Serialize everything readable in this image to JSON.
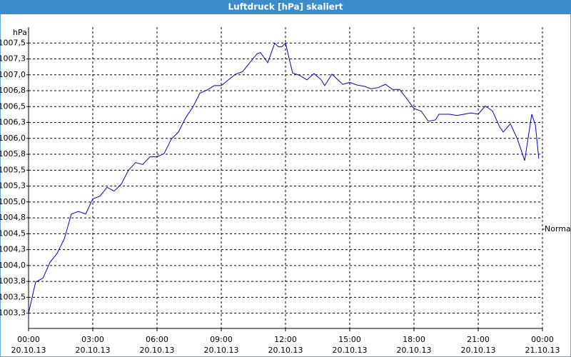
{
  "chart_data": {
    "type": "line",
    "title": "Luftdruck [hPa] skaliert",
    "y_label": "hPa",
    "x": [
      0,
      0.33,
      0.67,
      1,
      1.33,
      1.67,
      2,
      2.33,
      2.67,
      3,
      3.33,
      3.67,
      4,
      4.33,
      4.67,
      5,
      5.33,
      5.67,
      6,
      6.33,
      6.67,
      7,
      7.33,
      7.67,
      8,
      8.33,
      8.67,
      9,
      9.33,
      9.67,
      10,
      10.33,
      10.67,
      10.83,
      11.17,
      11.5,
      11.67,
      11.83,
      12,
      12.33,
      12.67,
      13,
      13.33,
      13.67,
      13.83,
      14.17,
      14.67,
      15,
      15.33,
      15.67,
      16,
      16.33,
      16.67,
      17,
      17.33,
      17.67,
      18,
      18.33,
      18.67,
      19,
      19.17,
      19.67,
      20,
      20.33,
      20.67,
      21,
      21.33,
      21.67,
      22,
      22.17,
      22.5,
      22.83,
      23.17,
      23.5,
      23.67,
      23.83
    ],
    "series": [
      {
        "name": "Normal",
        "color": "#0000cc",
        "values": [
          1003.25,
          1003.74,
          1003.8,
          1004.05,
          1004.19,
          1004.42,
          1004.81,
          1004.85,
          1004.81,
          1005.05,
          1005.09,
          1005.23,
          1005.17,
          1005.28,
          1005.5,
          1005.62,
          1005.59,
          1005.71,
          1005.71,
          1005.76,
          1005.99,
          1006.1,
          1006.32,
          1006.49,
          1006.71,
          1006.76,
          1006.83,
          1006.83,
          1006.92,
          1007.01,
          1007.05,
          1007.19,
          1007.33,
          1007.35,
          1007.19,
          1007.5,
          1007.44,
          1007.44,
          1007.5,
          1007.03,
          1006.99,
          1006.92,
          1007.02,
          1006.92,
          1006.83,
          1007.01,
          1006.85,
          1006.88,
          1006.84,
          1006.82,
          1006.78,
          1006.8,
          1006.85,
          1006.77,
          1006.77,
          1006.62,
          1006.47,
          1006.43,
          1006.27,
          1006.29,
          1006.38,
          1006.38,
          1006.36,
          1006.38,
          1006.4,
          1006.38,
          1006.51,
          1006.43,
          1006.18,
          1006.1,
          1006.23,
          1005.99,
          1005.65,
          1006.38,
          1006.21,
          1005.68
        ]
      }
    ],
    "xlim": [
      0,
      24
    ],
    "xticks": [
      {
        "value": 0,
        "label": "00:00",
        "date": "20.10.13"
      },
      {
        "value": 3,
        "label": "03:00",
        "date": "20.10.13"
      },
      {
        "value": 6,
        "label": "06:00",
        "date": "20.10.13"
      },
      {
        "value": 9,
        "label": "09:00",
        "date": "20.10.13"
      },
      {
        "value": 12,
        "label": "12:00",
        "date": "20.10.13"
      },
      {
        "value": 15,
        "label": "15:00",
        "date": "20.10.13"
      },
      {
        "value": 18,
        "label": "18:00",
        "date": "20.10.13"
      },
      {
        "value": 21,
        "label": "21:00",
        "date": "20.10.13"
      },
      {
        "value": 24,
        "label": "00:00",
        "date": "21.10.13"
      }
    ],
    "ylim": [
      1003.01,
      1007.75
    ],
    "yticks": [
      {
        "value": 1003.25,
        "label": "1003,3"
      },
      {
        "value": 1003.5,
        "label": "1003,5"
      },
      {
        "value": 1003.75,
        "label": "1003,8"
      },
      {
        "value": 1004,
        "label": "1004,0"
      },
      {
        "value": 1004.25,
        "label": "1004,3"
      },
      {
        "value": 1004.5,
        "label": "1004,5"
      },
      {
        "value": 1004.75,
        "label": "1004,8"
      },
      {
        "value": 1005,
        "label": "1005,0"
      },
      {
        "value": 1005.25,
        "label": "1005,3"
      },
      {
        "value": 1005.5,
        "label": "1005,5"
      },
      {
        "value": 1005.75,
        "label": "1005,8"
      },
      {
        "value": 1006,
        "label": "1006,0"
      },
      {
        "value": 1006.25,
        "label": "1006,3"
      },
      {
        "value": 1006.5,
        "label": "1006,5"
      },
      {
        "value": 1006.75,
        "label": "1006,8"
      },
      {
        "value": 1007,
        "label": "1007,0"
      },
      {
        "value": 1007.25,
        "label": "1007,3"
      },
      {
        "value": 1007.5,
        "label": "1007,5"
      }
    ],
    "grid": true,
    "legend": "right"
  }
}
